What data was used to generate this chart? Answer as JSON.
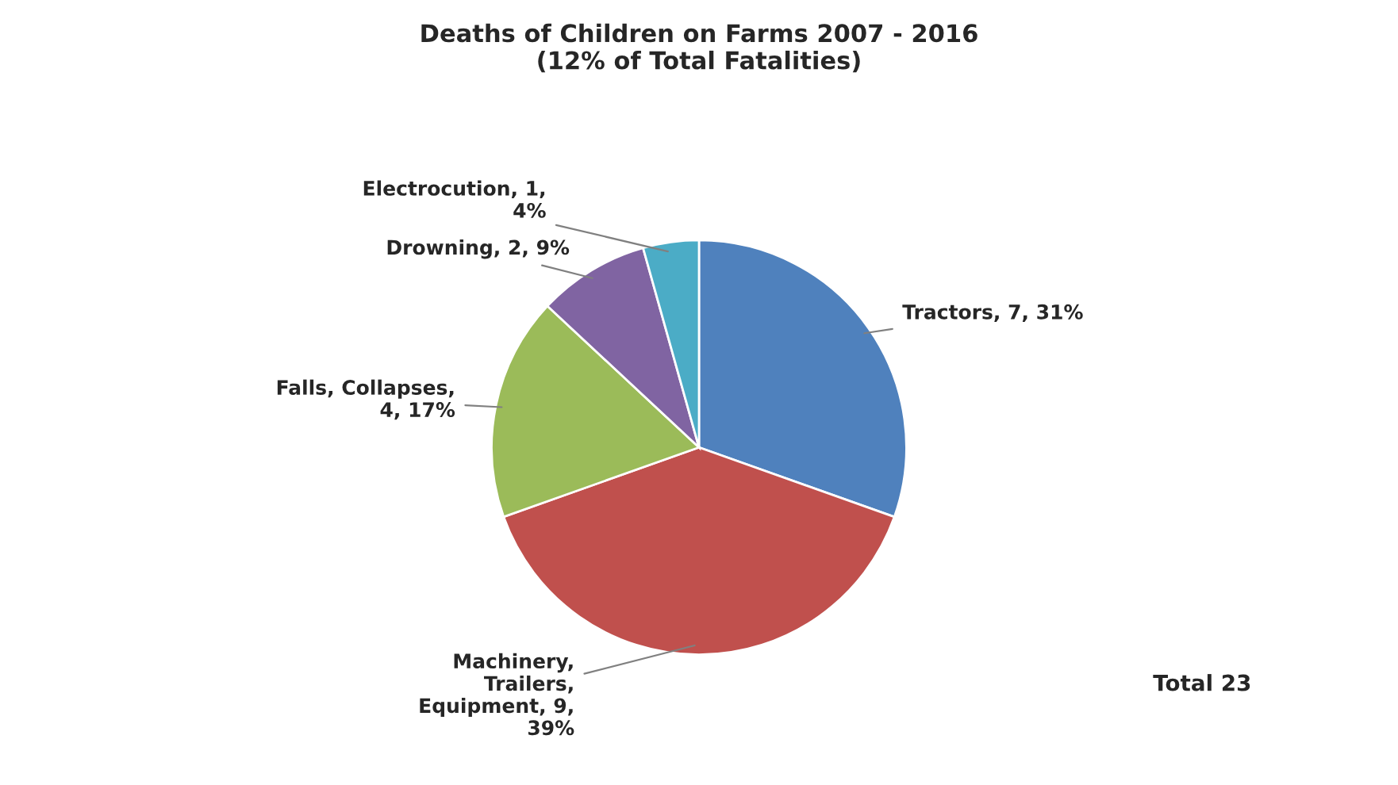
{
  "chart_data": {
    "type": "pie",
    "title": "Deaths of Children on Farms 2007 - 2016\n(12% of Total Fatalities)",
    "categories": [
      "Tractors, 7, 31%",
      "Machinery,\nTrailers,\nEquipment, 9,\n39%",
      "Falls, Collapses,\n4, 17%",
      "Drowning, 2, 9%",
      "Electrocution, 1,\n4%"
    ],
    "values": [
      7,
      9,
      4,
      2,
      1
    ],
    "colors": [
      "#4f81bd",
      "#c0504d",
      "#9bbb59",
      "#8064a2",
      "#4bacc6"
    ],
    "annotations": [
      "Total 23"
    ]
  }
}
